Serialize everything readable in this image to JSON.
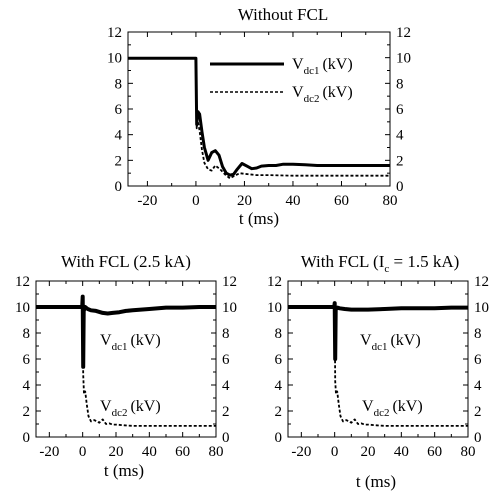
{
  "chart_data": [
    {
      "type": "line",
      "title": "Without FCL",
      "xlabel": "t (ms)",
      "ylabel": "",
      "xlim": [
        -28,
        80
      ],
      "ylim": [
        0,
        12
      ],
      "xticks": [
        "-20",
        "0",
        "20",
        "40",
        "60",
        "80"
      ],
      "yticks": [
        "0",
        "2",
        "4",
        "6",
        "8",
        "10",
        "12"
      ],
      "legend_placement": "top-right",
      "series": [
        {
          "name": "V_dc1 (kV)",
          "name_main": "V",
          "name_sub": "dc1",
          "name_unit": "(kV)",
          "style": "solid",
          "x": [
            -28,
            -1,
            -0.5,
            0,
            0.3,
            0.8,
            1.5,
            2.5,
            3.5,
            5,
            6.5,
            8,
            9.5,
            11,
            12.5,
            14,
            15.5,
            17,
            19,
            21,
            23,
            25,
            27,
            30,
            33,
            36,
            40,
            45,
            50,
            60,
            70,
            80
          ],
          "y": [
            9.95,
            9.95,
            9.95,
            9.95,
            4.8,
            5.8,
            5.6,
            4.2,
            3.0,
            2.0,
            2.6,
            2.75,
            2.4,
            1.5,
            1.0,
            0.85,
            0.9,
            1.3,
            1.75,
            1.55,
            1.35,
            1.4,
            1.55,
            1.6,
            1.6,
            1.7,
            1.7,
            1.65,
            1.6,
            1.6,
            1.6,
            1.6
          ]
        },
        {
          "name": "V_dc2 (kV)",
          "name_main": "V",
          "name_sub": "dc2",
          "name_unit": "(kV)",
          "style": "dashed",
          "x": [
            -28,
            -1,
            0,
            0.3,
            0.8,
            1.5,
            2.5,
            3.5,
            5,
            6.5,
            8,
            10,
            12,
            14,
            16,
            18,
            20,
            25,
            30,
            40,
            50,
            60,
            70,
            80
          ],
          "y": [
            9.95,
            9.95,
            9.95,
            4.5,
            5.0,
            4.3,
            2.8,
            1.8,
            1.3,
            1.2,
            1.6,
            1.3,
            0.9,
            0.6,
            0.8,
            1.0,
            0.95,
            0.85,
            0.85,
            0.8,
            0.8,
            0.8,
            0.8,
            0.8
          ]
        }
      ]
    },
    {
      "type": "line",
      "title": "With FCL (2.5 kA)",
      "xlabel": "t (ms)",
      "ylabel": "",
      "xlim": [
        -28,
        80
      ],
      "ylim": [
        0,
        12
      ],
      "xticks": [
        "-20",
        "0",
        "20",
        "40",
        "60",
        "80"
      ],
      "yticks": [
        "0",
        "2",
        "4",
        "6",
        "8",
        "10",
        "12"
      ],
      "series": [
        {
          "name": "V_dc1 (kV)",
          "name_main": "V",
          "name_sub": "dc1",
          "name_unit": "(kV)",
          "style": "solid",
          "x": [
            -28,
            -1,
            -0.3,
            0,
            0.3,
            0.6,
            1.5,
            3,
            5,
            8,
            12,
            15,
            18,
            22,
            26,
            30,
            40,
            50,
            60,
            70,
            80
          ],
          "y": [
            10.0,
            10.0,
            10.0,
            10.8,
            5.4,
            9.7,
            10.0,
            9.85,
            9.75,
            9.7,
            9.55,
            9.5,
            9.55,
            9.6,
            9.7,
            9.75,
            9.85,
            9.95,
            9.95,
            10.0,
            10.0
          ]
        },
        {
          "name": "V_dc2 (kV)",
          "name_main": "V",
          "name_sub": "dc2",
          "name_unit": "(kV)",
          "style": "dashed",
          "x": [
            -28,
            -1,
            0,
            0.3,
            0.8,
            1.5,
            2.5,
            3.5,
            5,
            7,
            10,
            12,
            14,
            16,
            18,
            20,
            25,
            30,
            40,
            50,
            60,
            70,
            80
          ],
          "y": [
            10.0,
            10.0,
            10.0,
            4.8,
            3.3,
            3.5,
            2.5,
            1.6,
            1.2,
            1.3,
            1.1,
            1.35,
            1.0,
            1.05,
            0.95,
            0.95,
            0.9,
            0.85,
            0.85,
            0.85,
            0.85,
            0.85,
            0.85
          ]
        }
      ]
    },
    {
      "type": "line",
      "title": "With FCL (I_c = 1.5 kA)",
      "title_pre": "With FCL (I",
      "title_sub": "c",
      "title_post": " = 1.5 kA)",
      "xlabel": "t (ms)",
      "ylabel": "",
      "xlim": [
        -28,
        80
      ],
      "ylim": [
        0,
        12
      ],
      "xticks": [
        "-20",
        "0",
        "20",
        "40",
        "60",
        "80"
      ],
      "yticks": [
        "0",
        "2",
        "4",
        "6",
        "8",
        "10",
        "12"
      ],
      "series": [
        {
          "name": "V_dc1 (kV)",
          "name_main": "V",
          "name_sub": "dc1",
          "name_unit": "(kV)",
          "style": "solid",
          "x": [
            -28,
            -1,
            -0.3,
            0,
            0.3,
            0.6,
            1.5,
            3,
            6,
            10,
            15,
            20,
            30,
            40,
            50,
            60,
            70,
            80
          ],
          "y": [
            10.0,
            10.0,
            10.0,
            10.3,
            6.0,
            9.8,
            9.95,
            9.9,
            9.85,
            9.8,
            9.8,
            9.8,
            9.85,
            9.9,
            9.9,
            9.9,
            9.95,
            9.95
          ]
        },
        {
          "name": "V_dc2 (kV)",
          "name_main": "V",
          "name_sub": "dc2",
          "name_unit": "(kV)",
          "style": "dashed",
          "x": [
            -28,
            -1,
            0,
            0.3,
            0.8,
            1.5,
            2.5,
            3.5,
            5,
            7,
            10,
            12,
            14,
            16,
            18,
            20,
            25,
            30,
            40,
            50,
            60,
            70,
            80
          ],
          "y": [
            10.0,
            10.0,
            10.0,
            4.3,
            3.3,
            3.5,
            2.5,
            1.6,
            1.2,
            1.3,
            1.1,
            1.35,
            1.0,
            1.05,
            0.95,
            0.95,
            0.9,
            0.85,
            0.85,
            0.85,
            0.85,
            0.85,
            0.85
          ]
        }
      ]
    }
  ]
}
